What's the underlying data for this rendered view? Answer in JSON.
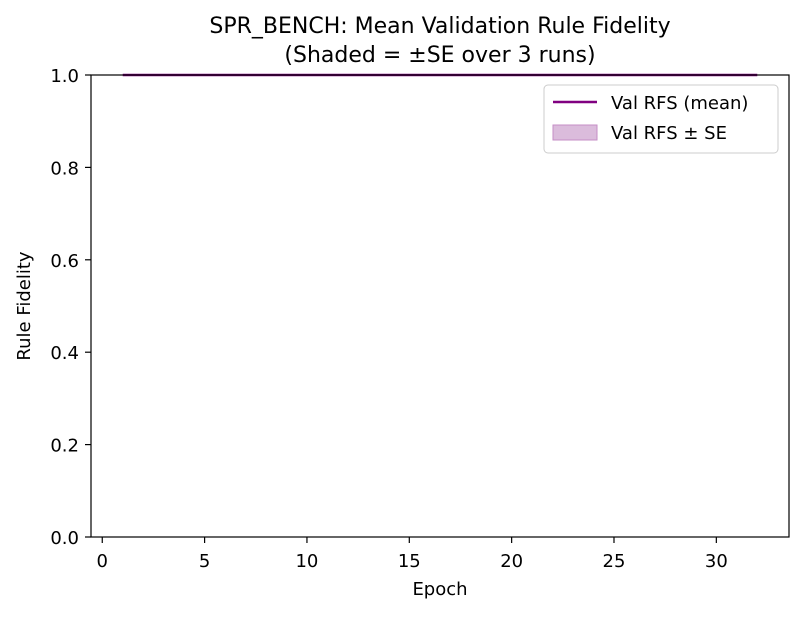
{
  "chart_data": {
    "type": "line",
    "title": "SPR_BENCH: Mean Validation Rule Fidelity",
    "subtitle": "(Shaded = ±SE over 3 runs)",
    "xlabel": "Epoch",
    "ylabel": "Rule Fidelity",
    "xlim": [
      -0.55,
      33.55
    ],
    "ylim": [
      0,
      1
    ],
    "x_ticks": [
      0,
      5,
      10,
      15,
      20,
      25,
      30
    ],
    "y_ticks": [
      0.0,
      0.2,
      0.4,
      0.6,
      0.8,
      1.0
    ],
    "x_tick_labels": [
      "0",
      "5",
      "10",
      "15",
      "20",
      "25",
      "30"
    ],
    "y_tick_labels": [
      "0.0",
      "0.2",
      "0.4",
      "0.6",
      "0.8",
      "1.0"
    ],
    "grid": false,
    "legend_position": "upper right",
    "series": [
      {
        "name": "Val RFS (mean)",
        "color": "#800080",
        "x": [
          1,
          2,
          3,
          4,
          5,
          6,
          7,
          8,
          9,
          10,
          11,
          12,
          13,
          14,
          15,
          16,
          17,
          18,
          19,
          20,
          21,
          22,
          23,
          24,
          25,
          26,
          27,
          28,
          29,
          30,
          31,
          32
        ],
        "values": [
          1,
          1,
          1,
          1,
          1,
          1,
          1,
          1,
          1,
          1,
          1,
          1,
          1,
          1,
          1,
          1,
          1,
          1,
          1,
          1,
          1,
          1,
          1,
          1,
          1,
          1,
          1,
          1,
          1,
          1,
          1,
          1
        ],
        "se": [
          0,
          0,
          0,
          0,
          0,
          0,
          0,
          0,
          0,
          0,
          0,
          0,
          0,
          0,
          0,
          0,
          0,
          0,
          0,
          0,
          0,
          0,
          0,
          0,
          0,
          0,
          0,
          0,
          0,
          0,
          0,
          0
        ]
      }
    ],
    "band": {
      "name": "Val RFS ± SE",
      "color": "#dbbcdc",
      "edge_color": "#c58ec6"
    }
  }
}
